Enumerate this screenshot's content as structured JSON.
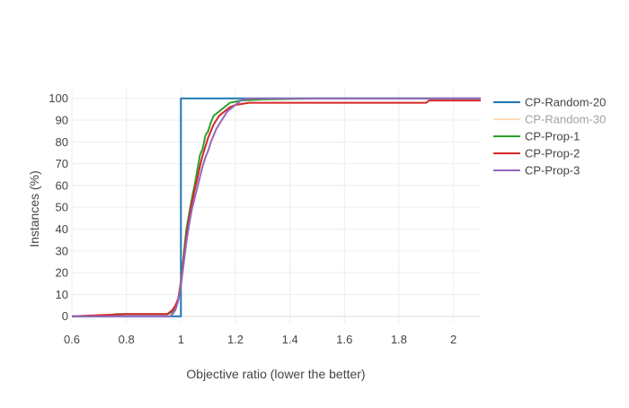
{
  "chart_data": {
    "type": "line",
    "title": "",
    "xlabel": "Objective ratio (lower the better)",
    "ylabel": "Instances (%)",
    "xlim": [
      0.6,
      2.1
    ],
    "ylim": [
      -3,
      104
    ],
    "x_ticks": [
      0.6,
      0.8,
      1,
      1.2,
      1.4,
      1.6,
      1.8,
      2
    ],
    "x_tick_labels": [
      "0.6",
      "0.8",
      "1",
      "1.2",
      "1.4",
      "1.6",
      "1.8",
      "2"
    ],
    "y_ticks": [
      0,
      10,
      20,
      30,
      40,
      50,
      60,
      70,
      80,
      90,
      100
    ],
    "y_tick_labels": [
      "0",
      "10",
      "20",
      "30",
      "40",
      "50",
      "60",
      "70",
      "80",
      "90",
      "100"
    ],
    "grid": true,
    "legend_position": "right",
    "series": [
      {
        "name": "CP-Random-20",
        "color": "#1f77b4",
        "legend_dimmed": false,
        "visible": true,
        "x": [
          0.6,
          1.0,
          1.0,
          2.1
        ],
        "y": [
          0,
          0,
          100,
          100
        ]
      },
      {
        "name": "CP-Random-30",
        "color": "#ffbb78",
        "legend_dimmed": true,
        "visible": false,
        "x": [],
        "y": []
      },
      {
        "name": "CP-Prop-1",
        "color": "#2ca02c",
        "legend_dimmed": false,
        "visible": true,
        "x": [
          0.6,
          0.75,
          0.76,
          0.95,
          0.97,
          0.98,
          0.99,
          1.0,
          1.01,
          1.02,
          1.03,
          1.04,
          1.05,
          1.06,
          1.07,
          1.08,
          1.09,
          1.1,
          1.11,
          1.12,
          1.13,
          1.14,
          1.15,
          1.16,
          1.17,
          1.18,
          1.2,
          1.22,
          1.3,
          1.5,
          2.1
        ],
        "y": [
          0,
          0,
          1,
          1,
          2,
          4,
          8,
          16,
          28,
          40,
          47,
          54,
          60,
          67,
          74,
          77,
          83,
          85,
          89,
          92,
          93,
          94,
          95,
          96,
          97,
          98,
          98.5,
          99,
          99.5,
          100,
          100
        ]
      },
      {
        "name": "CP-Prop-2",
        "color": "#d62728",
        "legend_dimmed": false,
        "visible": true,
        "x": [
          0.6,
          0.8,
          0.95,
          0.97,
          0.98,
          0.99,
          1.0,
          1.01,
          1.02,
          1.03,
          1.04,
          1.05,
          1.06,
          1.07,
          1.08,
          1.09,
          1.1,
          1.11,
          1.12,
          1.13,
          1.14,
          1.15,
          1.16,
          1.17,
          1.18,
          1.2,
          1.25,
          1.9,
          1.91,
          2.1
        ],
        "y": [
          0,
          1,
          1,
          3,
          5,
          8,
          15,
          26,
          37,
          45,
          52,
          58,
          63,
          69,
          74,
          78,
          82,
          85,
          88,
          90,
          92,
          93,
          94,
          95,
          96,
          97,
          98,
          98,
          99,
          99
        ]
      },
      {
        "name": "CP-Prop-3",
        "color": "#9467bd",
        "legend_dimmed": false,
        "visible": true,
        "x": [
          0.6,
          0.96,
          0.97,
          0.98,
          0.99,
          1.0,
          1.01,
          1.02,
          1.03,
          1.04,
          1.05,
          1.06,
          1.07,
          1.08,
          1.09,
          1.1,
          1.11,
          1.12,
          1.13,
          1.14,
          1.15,
          1.16,
          1.17,
          1.18,
          1.19,
          1.2,
          1.21,
          1.22,
          1.23,
          1.25,
          2.1
        ],
        "y": [
          0,
          0,
          1,
          3,
          7,
          14,
          24,
          34,
          42,
          49,
          54,
          59,
          64,
          69,
          73,
          76,
          80,
          83,
          86,
          88,
          90,
          92,
          94,
          95,
          96,
          97,
          98,
          99,
          99.5,
          100,
          100
        ]
      }
    ]
  }
}
